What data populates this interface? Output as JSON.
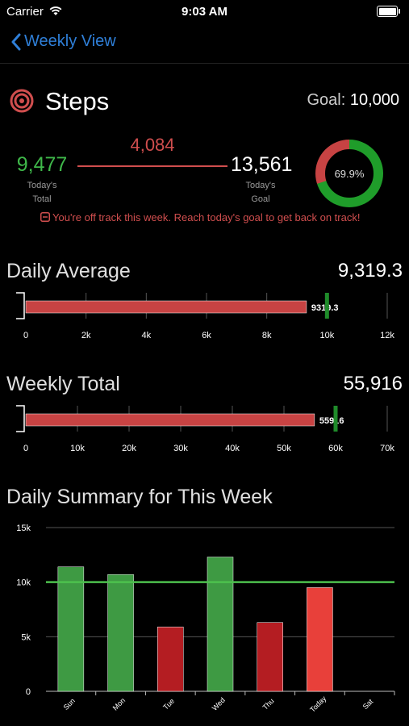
{
  "status": {
    "carrier": "Carrier",
    "time": "9:03 AM"
  },
  "nav": {
    "back_label": "Weekly View"
  },
  "header": {
    "title": "Steps",
    "goal_label": "Goal:",
    "goal_value": "10,000"
  },
  "progress": {
    "today_total": "9,477",
    "today_total_label_1": "Today's",
    "today_total_label_2": "Total",
    "remaining": "4,084",
    "today_goal": "13,561",
    "today_goal_label_1": "Today's",
    "today_goal_label_2": "Goal",
    "ring_percent_label": "69.9%",
    "ring_fraction": 0.699,
    "warning": "You're off track this week.  Reach today's goal to get back on track!"
  },
  "daily_average": {
    "title": "Daily Average",
    "value": "9,319.3",
    "bar_label": "9319.3",
    "bar_value": 9319.3,
    "goal_marker": 10000,
    "max": 12000,
    "ticks": [
      "0",
      "2k",
      "4k",
      "6k",
      "8k",
      "10k",
      "12k"
    ]
  },
  "weekly_total": {
    "title": "Weekly Total",
    "value": "55,916",
    "bar_label": "55916",
    "bar_value": 55916,
    "goal_marker": 60000,
    "max": 70000,
    "ticks": [
      "0",
      "10k",
      "20k",
      "30k",
      "40k",
      "50k",
      "60k",
      "70k"
    ]
  },
  "summary": {
    "title": "Daily Summary for This Week"
  },
  "chart_data": {
    "type": "bar",
    "categories": [
      "Sun",
      "Mon",
      "Tue",
      "Wed",
      "Thu",
      "Today",
      "Sat"
    ],
    "values": [
      11400,
      10700,
      5900,
      12300,
      6300,
      9500,
      null
    ],
    "goal_line": 10000,
    "ylim": [
      0,
      15000
    ],
    "y_ticks": [
      "0",
      "5k",
      "10k",
      "15k"
    ],
    "bar_colors": [
      "#3e9a43",
      "#3e9a43",
      "#b41d22",
      "#3e9a43",
      "#b41d22",
      "#e8403a",
      null
    ],
    "grid": true
  },
  "colors": {
    "accent": "#2f7fd8",
    "green": "#3fb84a",
    "red": "#d04e4e",
    "goal_line": "#4dc04d"
  }
}
